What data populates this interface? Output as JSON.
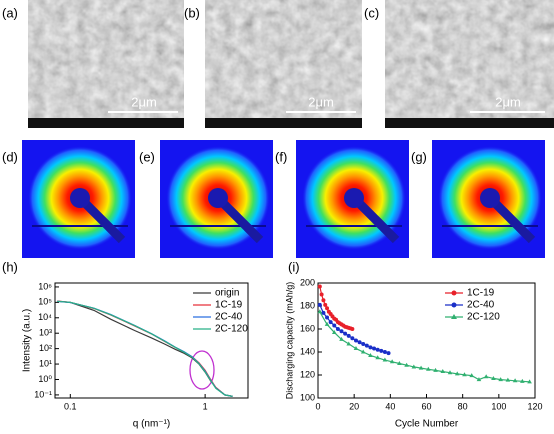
{
  "panels": {
    "labels": [
      "(a)",
      "(b)",
      "(c)",
      "(d)",
      "(e)",
      "(f)",
      "(g)"
    ],
    "scale_bar": "2μm"
  },
  "chart_data": [
    {
      "type": "line",
      "label": "(h)",
      "xlabel": "q (nm⁻¹)",
      "ylabel": "Intensity (a.u.)",
      "xscale": "log",
      "yscale": "log",
      "xlim": [
        0.077,
        2.08
      ],
      "ylim": [
        0.063,
        1800000
      ],
      "xticks": [
        0.1,
        1
      ],
      "yticks": [
        {
          "value": 0.1,
          "label": "10⁻¹"
        },
        {
          "value": 1,
          "label": "10⁰"
        },
        {
          "value": 10,
          "label": "10¹"
        },
        {
          "value": 100,
          "label": "10²"
        },
        {
          "value": 1000,
          "label": "10³"
        },
        {
          "value": 10000,
          "label": "10⁴"
        },
        {
          "value": 100000,
          "label": "10⁵"
        },
        {
          "value": 1000000,
          "label": "10⁶"
        }
      ],
      "legend": "upper right",
      "x": [
        0.08,
        0.1,
        0.15,
        0.2,
        0.3,
        0.4,
        0.5,
        0.6,
        0.7,
        0.8,
        0.9,
        1.0,
        1.1,
        1.2,
        1.4,
        1.6
      ],
      "series": [
        {
          "name": "origin",
          "color": "#3a3a3a",
          "values": [
            120000,
            100000,
            30000,
            8000,
            1500,
            500,
            200,
            90,
            50,
            25,
            10,
            3,
            0.8,
            0.3,
            0.1,
            0.08
          ]
        },
        {
          "name": "1C-19",
          "color": "#e8303a",
          "values": [
            120000,
            100000,
            40000,
            15000,
            3000,
            900,
            300,
            120,
            60,
            30,
            12,
            4,
            1,
            0.3,
            0.1,
            0.08
          ]
        },
        {
          "name": "2C-40",
          "color": "#2a6fe0",
          "values": [
            115000,
            98000,
            42000,
            16000,
            3200,
            950,
            320,
            125,
            62,
            30,
            11,
            3.5,
            0.9,
            0.28,
            0.1,
            0.08
          ]
        },
        {
          "name": "2C-120",
          "color": "#28b088",
          "values": [
            118000,
            99000,
            41000,
            15500,
            3100,
            920,
            310,
            122,
            58,
            28,
            10.5,
            3.2,
            0.85,
            0.27,
            0.1,
            0.08
          ]
        }
      ]
    },
    {
      "type": "line",
      "label": "(i)",
      "xlabel": "Cycle Number",
      "ylabel": "Discharging capacity (mAh/g)",
      "xlim": [
        0,
        120
      ],
      "ylim": [
        100,
        200
      ],
      "xticks": [
        0,
        20,
        40,
        60,
        80,
        100,
        120
      ],
      "yticks": [
        100,
        120,
        140,
        160,
        180,
        200
      ],
      "legend": "upper right",
      "series": [
        {
          "name": "1C-19",
          "color": "#e8202a",
          "marker": "circle",
          "x": [
            1,
            2,
            3,
            4,
            5,
            6,
            7,
            8,
            9,
            10,
            11,
            12,
            13,
            14,
            15,
            16,
            17,
            18,
            19
          ],
          "values": [
            197,
            190,
            185,
            181,
            178,
            175,
            173,
            171,
            169,
            168,
            166,
            165,
            164,
            163,
            162,
            161.5,
            161,
            160.5,
            160
          ]
        },
        {
          "name": "2C-40",
          "color": "#1a2fc8",
          "marker": "circle",
          "x": [
            1,
            3,
            5,
            7,
            9,
            11,
            13,
            15,
            17,
            19,
            21,
            23,
            25,
            27,
            29,
            31,
            33,
            35,
            37,
            39
          ],
          "values": [
            181,
            174,
            170,
            166,
            163,
            160,
            158,
            156,
            154,
            152,
            150,
            148.5,
            147,
            145.5,
            144,
            143,
            142,
            141,
            140,
            139
          ]
        },
        {
          "name": "2C-120",
          "color": "#30b070",
          "marker": "triangle",
          "x": [
            1,
            5,
            9,
            13,
            17,
            21,
            25,
            29,
            33,
            37,
            41,
            45,
            49,
            53,
            57,
            61,
            65,
            69,
            73,
            77,
            81,
            85,
            89,
            93,
            97,
            101,
            105,
            109,
            113,
            117
          ],
          "values": [
            175,
            164,
            157,
            151,
            147,
            143,
            140,
            137,
            135,
            133,
            131.5,
            130,
            128.5,
            127,
            126,
            125,
            124,
            123,
            122,
            121,
            120.2,
            119.5,
            116,
            118.5,
            117,
            116,
            115.5,
            115,
            114.5,
            114
          ]
        }
      ]
    }
  ]
}
